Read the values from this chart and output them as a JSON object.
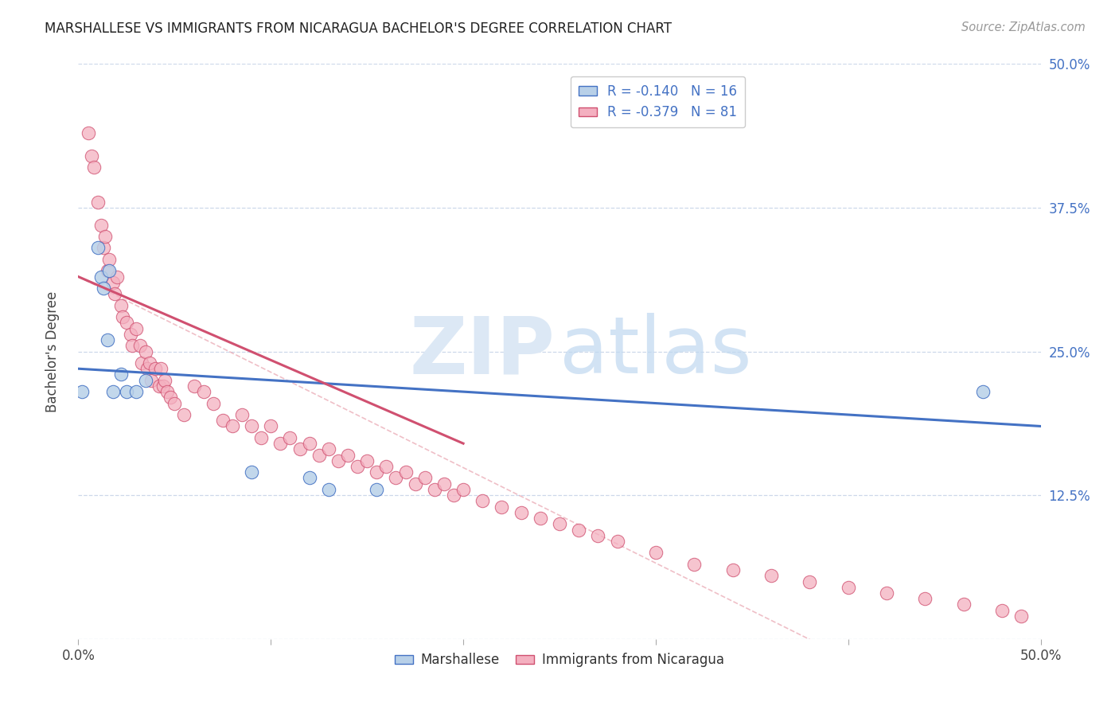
{
  "title": "MARSHALLESE VS IMMIGRANTS FROM NICARAGUA BACHELOR'S DEGREE CORRELATION CHART",
  "source": "Source: ZipAtlas.com",
  "ylabel": "Bachelor's Degree",
  "legend_blue_r": "-0.140",
  "legend_blue_n": "16",
  "legend_pink_r": "-0.379",
  "legend_pink_n": "81",
  "blue_color": "#b8d0e8",
  "pink_color": "#f4b0c0",
  "blue_line_color": "#4472c4",
  "pink_line_color": "#d05070",
  "diag_line_color": "#e08090",
  "ytick_color": "#4472c4",
  "background_color": "#ffffff",
  "grid_color": "#c8d4e8",
  "xlim": [
    0.0,
    0.5
  ],
  "ylim": [
    0.0,
    0.5
  ],
  "yticks": [
    0.0,
    0.125,
    0.25,
    0.375,
    0.5
  ],
  "ytick_labels": [
    "",
    "12.5%",
    "25.0%",
    "37.5%",
    "50.0%"
  ],
  "blue_scatter_x": [
    0.002,
    0.01,
    0.012,
    0.013,
    0.015,
    0.016,
    0.018,
    0.022,
    0.025,
    0.03,
    0.035,
    0.09,
    0.12,
    0.13,
    0.155,
    0.47
  ],
  "blue_scatter_y": [
    0.215,
    0.34,
    0.315,
    0.305,
    0.26,
    0.32,
    0.215,
    0.23,
    0.215,
    0.215,
    0.225,
    0.145,
    0.14,
    0.13,
    0.13,
    0.215
  ],
  "pink_scatter_x": [
    0.005,
    0.007,
    0.008,
    0.01,
    0.012,
    0.013,
    0.014,
    0.015,
    0.016,
    0.018,
    0.019,
    0.02,
    0.022,
    0.023,
    0.025,
    0.027,
    0.028,
    0.03,
    0.032,
    0.033,
    0.035,
    0.036,
    0.037,
    0.038,
    0.04,
    0.042,
    0.043,
    0.044,
    0.045,
    0.046,
    0.048,
    0.05,
    0.055,
    0.06,
    0.065,
    0.07,
    0.075,
    0.08,
    0.085,
    0.09,
    0.095,
    0.1,
    0.105,
    0.11,
    0.115,
    0.12,
    0.125,
    0.13,
    0.135,
    0.14,
    0.145,
    0.15,
    0.155,
    0.16,
    0.165,
    0.17,
    0.175,
    0.18,
    0.185,
    0.19,
    0.195,
    0.2,
    0.21,
    0.22,
    0.23,
    0.24,
    0.25,
    0.26,
    0.27,
    0.28,
    0.3,
    0.32,
    0.34,
    0.36,
    0.38,
    0.4,
    0.42,
    0.44,
    0.46,
    0.48,
    0.49
  ],
  "pink_scatter_y": [
    0.44,
    0.42,
    0.41,
    0.38,
    0.36,
    0.34,
    0.35,
    0.32,
    0.33,
    0.31,
    0.3,
    0.315,
    0.29,
    0.28,
    0.275,
    0.265,
    0.255,
    0.27,
    0.255,
    0.24,
    0.25,
    0.235,
    0.24,
    0.225,
    0.235,
    0.22,
    0.235,
    0.22,
    0.225,
    0.215,
    0.21,
    0.205,
    0.195,
    0.22,
    0.215,
    0.205,
    0.19,
    0.185,
    0.195,
    0.185,
    0.175,
    0.185,
    0.17,
    0.175,
    0.165,
    0.17,
    0.16,
    0.165,
    0.155,
    0.16,
    0.15,
    0.155,
    0.145,
    0.15,
    0.14,
    0.145,
    0.135,
    0.14,
    0.13,
    0.135,
    0.125,
    0.13,
    0.12,
    0.115,
    0.11,
    0.105,
    0.1,
    0.095,
    0.09,
    0.085,
    0.075,
    0.065,
    0.06,
    0.055,
    0.05,
    0.045,
    0.04,
    0.035,
    0.03,
    0.025,
    0.02
  ],
  "blue_trend_x": [
    0.0,
    0.5
  ],
  "blue_trend_y": [
    0.235,
    0.185
  ],
  "pink_trend_x": [
    0.0,
    0.2
  ],
  "pink_trend_y": [
    0.315,
    0.17
  ]
}
